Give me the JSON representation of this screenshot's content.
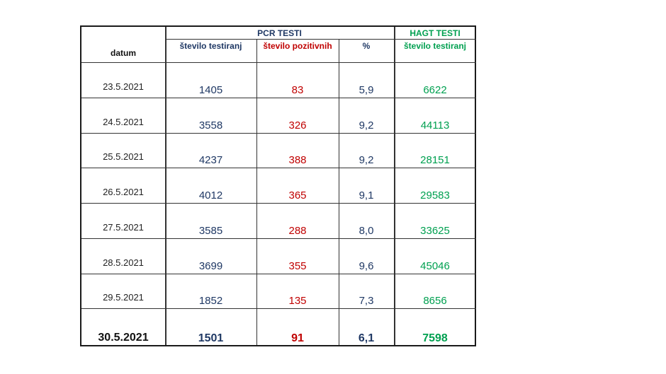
{
  "header": {
    "date_label": "datum",
    "pcr_group": "PCR TESTI",
    "hagt_group": "HAGT TESTI",
    "columns": [
      "število testiranj",
      "število pozitivnih",
      "%",
      "število testiranj"
    ]
  },
  "rows": [
    {
      "date": "23.5.2021",
      "pcr_tested": "1405",
      "pcr_positive": "83",
      "percent": "5,9",
      "hagt_tested": "6622"
    },
    {
      "date": "24.5.2021",
      "pcr_tested": "3558",
      "pcr_positive": "326",
      "percent": "9,2",
      "hagt_tested": "44113"
    },
    {
      "date": "25.5.2021",
      "pcr_tested": "4237",
      "pcr_positive": "388",
      "percent": "9,2",
      "hagt_tested": "28151"
    },
    {
      "date": "26.5.2021",
      "pcr_tested": "4012",
      "pcr_positive": "365",
      "percent": "9,1",
      "hagt_tested": "29583"
    },
    {
      "date": "27.5.2021",
      "pcr_tested": "3585",
      "pcr_positive": "288",
      "percent": "8,0",
      "hagt_tested": "33625"
    },
    {
      "date": "28.5.2021",
      "pcr_tested": "3699",
      "pcr_positive": "355",
      "percent": "9,6",
      "hagt_tested": "45046"
    },
    {
      "date": "29.5.2021",
      "pcr_tested": "1852",
      "pcr_positive": "135",
      "percent": "7,3",
      "hagt_tested": "8656"
    },
    {
      "date": "30.5.2021",
      "pcr_tested": "1501",
      "pcr_positive": "91",
      "percent": "6,1",
      "hagt_tested": "7598"
    }
  ],
  "colors": {
    "pcr": "#1f3864",
    "positive": "#c00000",
    "hagt": "#00a050"
  }
}
